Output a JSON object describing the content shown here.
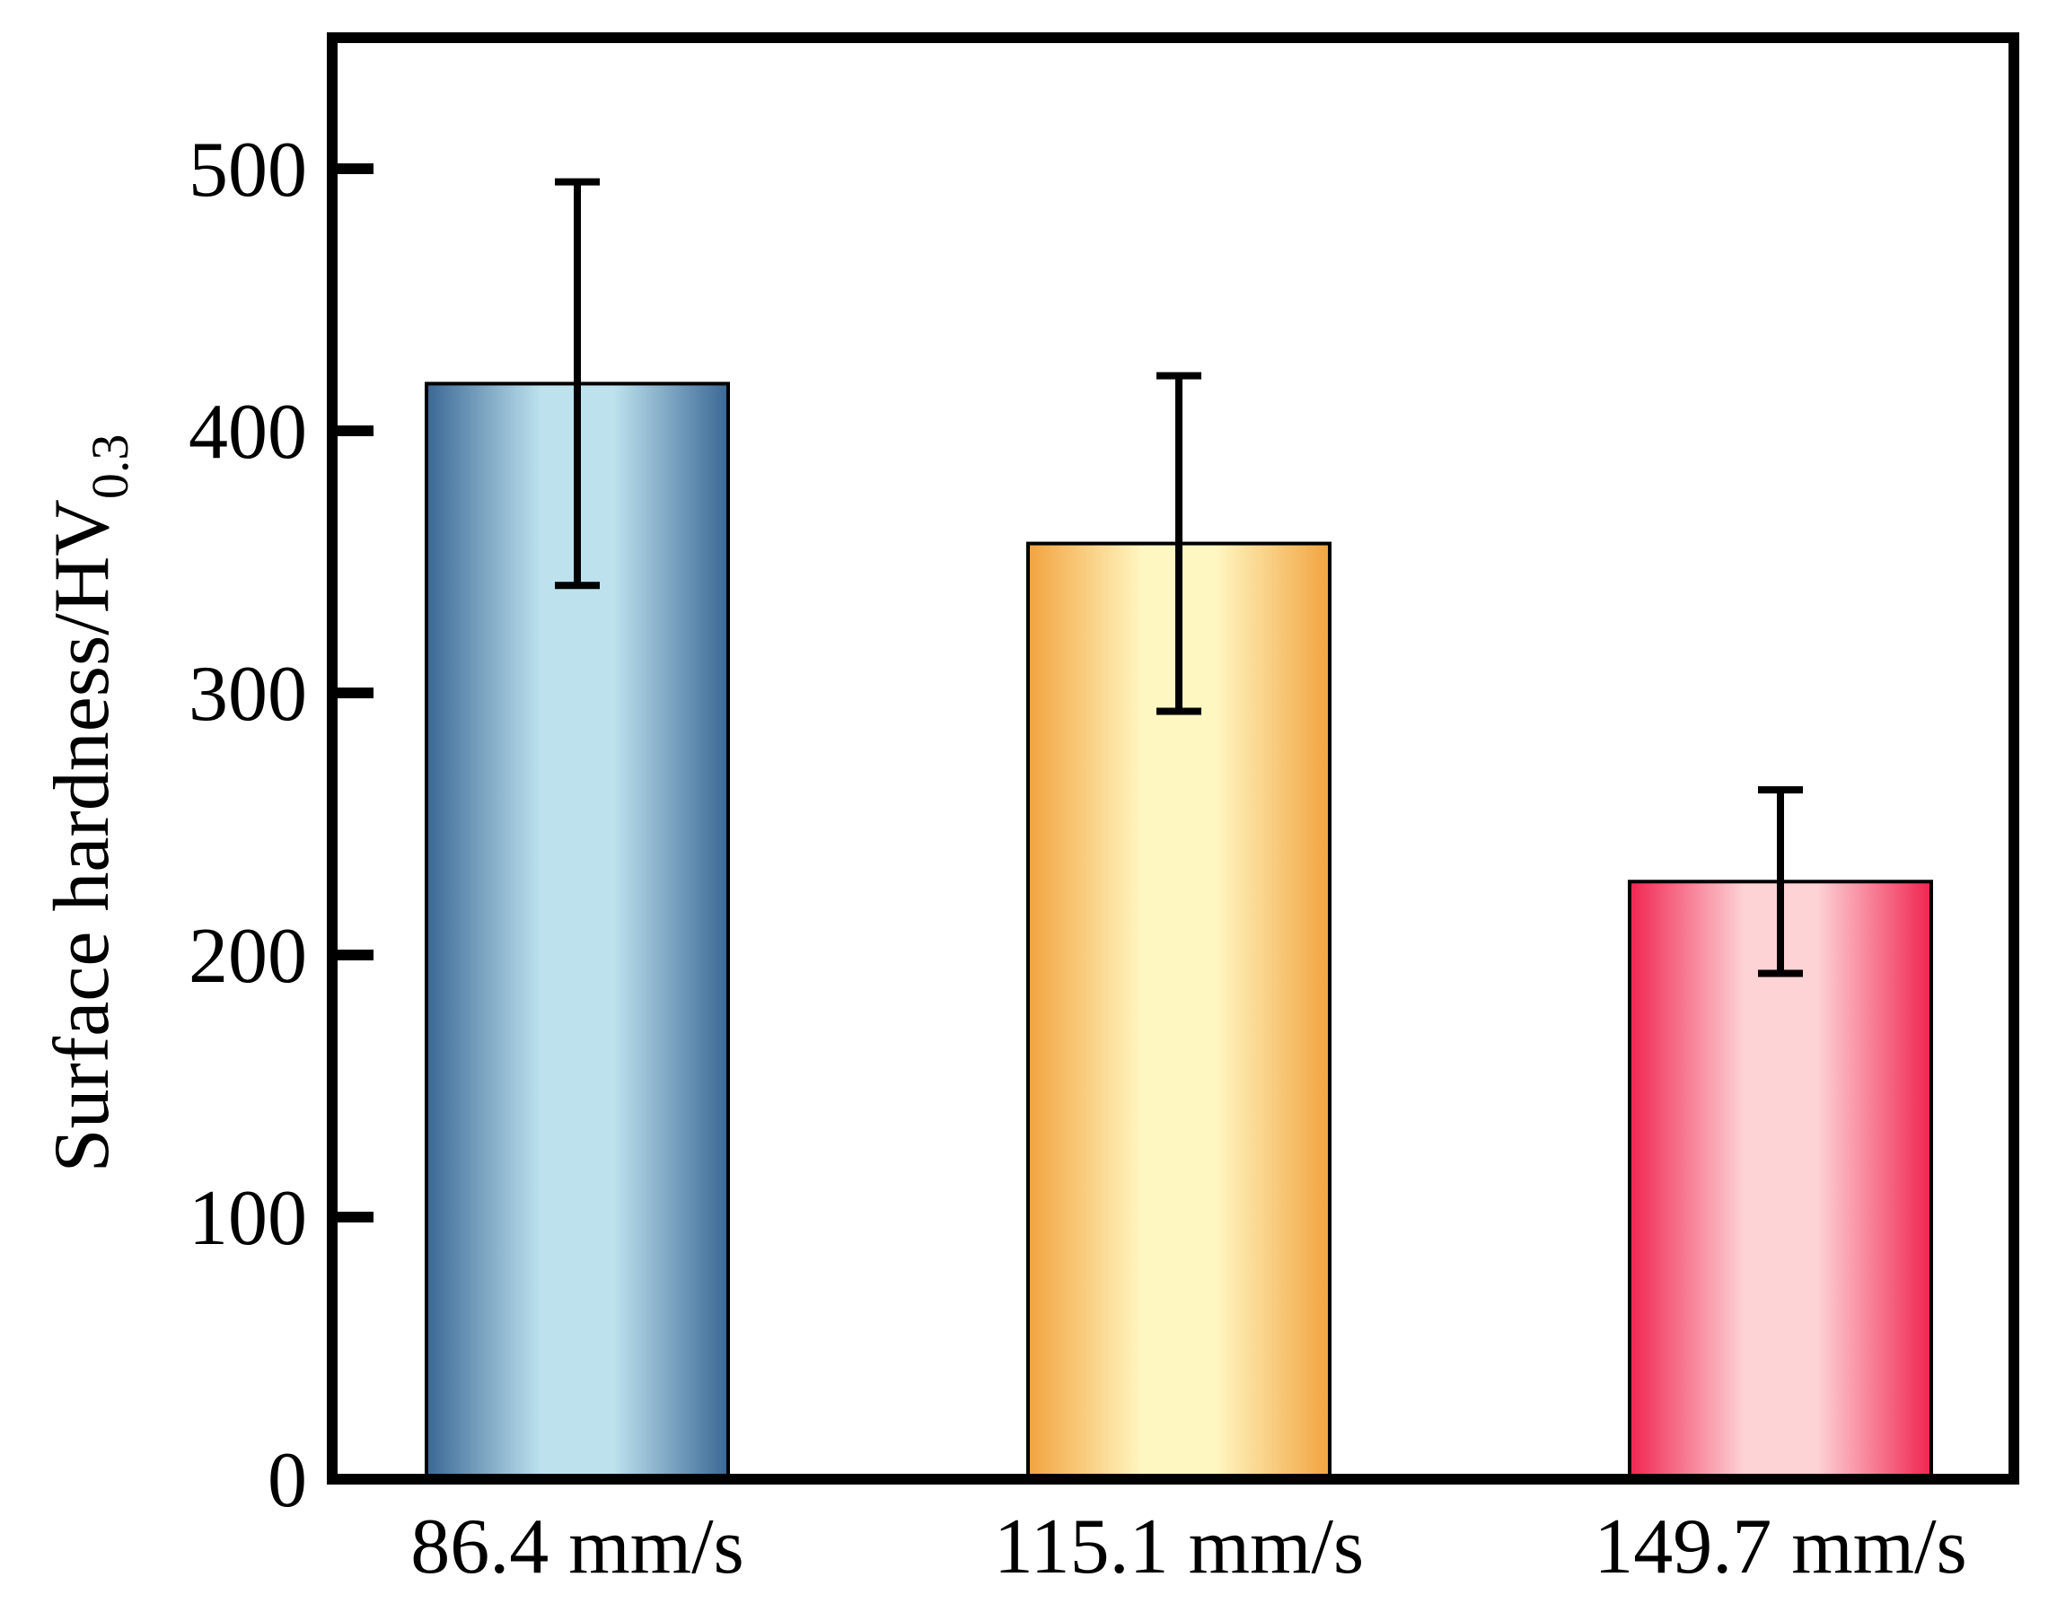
{
  "chart_data": {
    "type": "bar",
    "title": "",
    "xlabel": "",
    "ylabel": "Surface hardness/HV",
    "ylabel_subscript": "0.3",
    "categories": [
      "86.4 mm/s",
      "115.1 mm/s",
      "149.7 mm/s"
    ],
    "values": [
      418,
      357,
      228
    ],
    "error_high": [
      495,
      421,
      263
    ],
    "error_low": [
      341,
      293,
      193
    ],
    "ylim": [
      0,
      550
    ],
    "yticks": [
      0,
      100,
      200,
      300,
      400,
      500
    ],
    "ytick_labels": [
      "0",
      "100",
      "200",
      "300",
      "400",
      "500"
    ],
    "grid": false,
    "legend": "none",
    "bar_colors": [
      {
        "edge": "#3a6795",
        "center": "#bde2ee"
      },
      {
        "edge": "#f2a33f",
        "center": "#fff7c2"
      },
      {
        "edge": "#f02550",
        "center": "#fdd3d6"
      }
    ]
  }
}
